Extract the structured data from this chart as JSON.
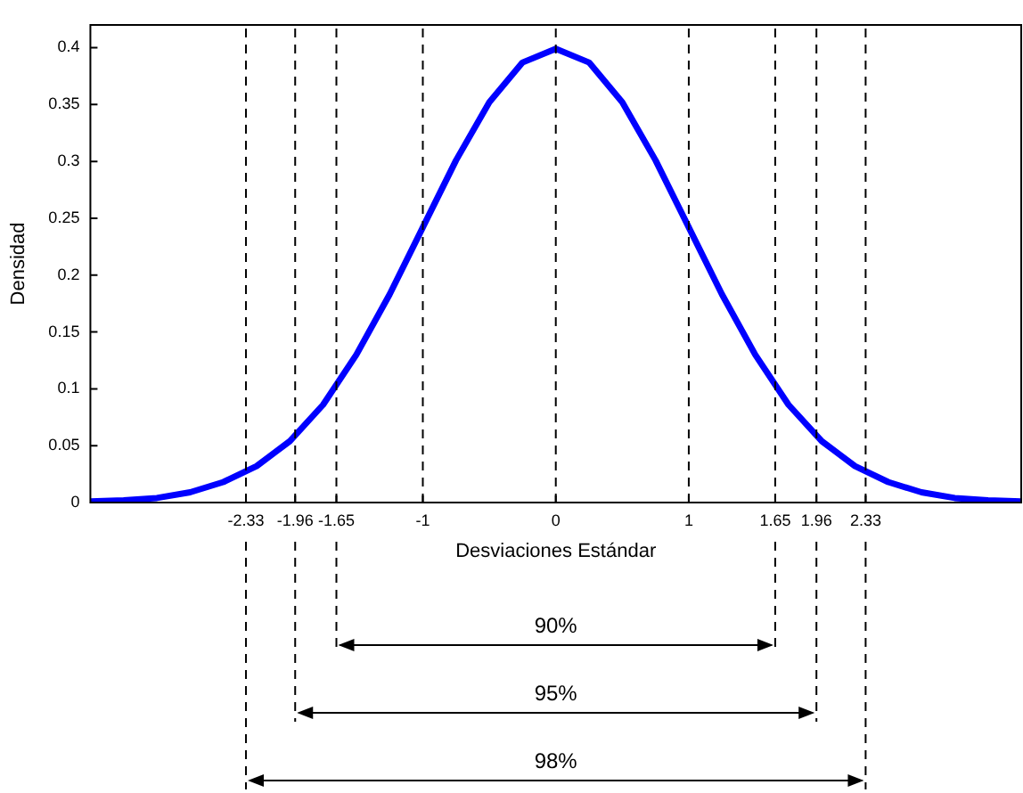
{
  "chart_data": {
    "type": "line",
    "xlabel": "Desviaciones Estándar",
    "ylabel": "Densidad",
    "x": [
      -3.5,
      -3.25,
      -3,
      -2.75,
      -2.5,
      -2.25,
      -2,
      -1.75,
      -1.5,
      -1.25,
      -1,
      -0.75,
      -0.5,
      -0.25,
      0,
      0.25,
      0.5,
      0.75,
      1,
      1.25,
      1.5,
      1.75,
      2,
      2.25,
      2.5,
      2.75,
      3,
      3.25,
      3.5
    ],
    "series": [
      {
        "color": "#0000ff",
        "values": [
          0.001,
          0.002,
          0.004,
          0.009,
          0.018,
          0.032,
          0.054,
          0.086,
          0.13,
          0.183,
          0.242,
          0.301,
          0.352,
          0.387,
          0.399,
          0.387,
          0.352,
          0.301,
          0.242,
          0.183,
          0.13,
          0.086,
          0.054,
          0.032,
          0.018,
          0.009,
          0.004,
          0.002,
          0.001
        ]
      }
    ],
    "xlim": [
      -3.5,
      3.5
    ],
    "ylim": [
      0,
      0.42
    ],
    "xticks": [
      -2.33,
      -1.96,
      -1.65,
      -1,
      0,
      1,
      1.65,
      1.96,
      2.33
    ],
    "yticks": [
      0,
      0.05,
      0.1,
      0.15,
      0.2,
      0.25,
      0.3,
      0.35,
      0.4
    ],
    "ref_lines": [
      {
        "axis": "x",
        "value": -2.33,
        "line_style": "dashed"
      },
      {
        "axis": "x",
        "value": -1.96,
        "line_style": "dashed"
      },
      {
        "axis": "x",
        "value": -1.65,
        "line_style": "dashed"
      },
      {
        "axis": "x",
        "value": -1,
        "line_style": "dashed"
      },
      {
        "axis": "x",
        "value": 0,
        "line_style": "dashed"
      },
      {
        "axis": "x",
        "value": 1,
        "line_style": "dashed"
      },
      {
        "axis": "x",
        "value": 1.65,
        "line_style": "dashed"
      },
      {
        "axis": "x",
        "value": 1.96,
        "line_style": "dashed"
      },
      {
        "axis": "x",
        "value": 2.33,
        "line_style": "dashed"
      }
    ],
    "annotations": [
      "90%",
      "95%",
      "98%"
    ],
    "grid": false,
    "legend": false,
    "marker": "none",
    "line_style": "solid"
  }
}
